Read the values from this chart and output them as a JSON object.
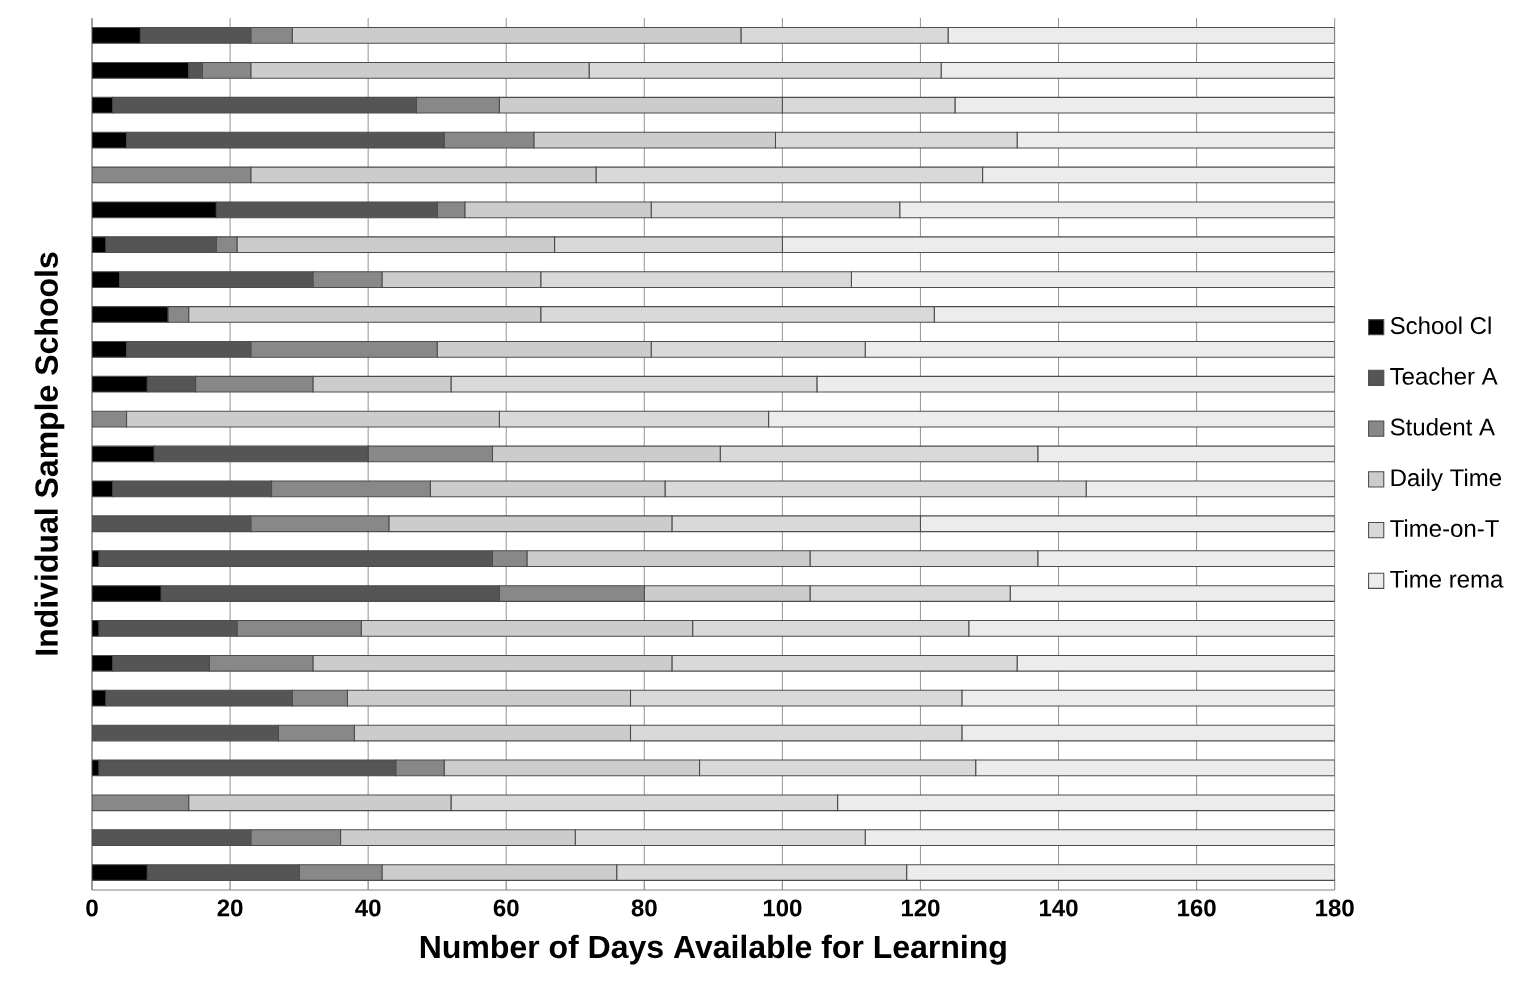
{
  "chart_data": {
    "type": "bar",
    "orientation": "horizontal",
    "stacked": true,
    "xlabel": "Number of Days Available for Learning",
    "ylabel": "Individual Sample Schools",
    "categories": [
      null,
      null,
      null,
      null,
      null,
      null,
      null,
      null,
      null,
      null,
      null,
      null,
      null,
      null,
      null,
      null,
      null,
      null,
      null,
      null,
      null,
      null,
      null,
      null,
      null
    ],
    "series": [
      {
        "name": "School Cl",
        "color": "#000000",
        "values": [
          7,
          14,
          3,
          5,
          0,
          18,
          2,
          4,
          11,
          5,
          8,
          0,
          9,
          3,
          0,
          1,
          10,
          1,
          3,
          2,
          0,
          1,
          0,
          0,
          8
        ]
      },
      {
        "name": "Teacher A",
        "color": "#555555",
        "values": [
          16,
          2,
          44,
          46,
          0,
          32,
          16,
          28,
          0,
          18,
          7,
          0,
          31,
          23,
          23,
          57,
          49,
          20,
          14,
          27,
          27,
          43,
          0,
          23,
          22
        ]
      },
      {
        "name": "Student A",
        "color": "#888888",
        "values": [
          6,
          7,
          12,
          13,
          23,
          4,
          3,
          10,
          3,
          27,
          17,
          5,
          18,
          23,
          20,
          5,
          21,
          18,
          15,
          8,
          11,
          7,
          14,
          13,
          12
        ]
      },
      {
        "name": "Daily Time",
        "color": "#cccccc",
        "values": [
          65,
          49,
          41,
          35,
          50,
          27,
          46,
          23,
          51,
          31,
          20,
          54,
          33,
          34,
          41,
          41,
          24,
          48,
          52,
          41,
          40,
          37,
          38,
          34,
          34
        ]
      },
      {
        "name": "Time-on-T",
        "color": "#d9d9d9",
        "values": [
          30,
          51,
          25,
          35,
          56,
          36,
          33,
          45,
          57,
          31,
          53,
          39,
          46,
          61,
          36,
          33,
          29,
          40,
          50,
          48,
          48,
          40,
          56,
          42,
          42
        ]
      },
      {
        "name": "Time rema",
        "color": "#ececec",
        "values": [
          56,
          57,
          55,
          46,
          51,
          63,
          80,
          70,
          58,
          68,
          75,
          82,
          43,
          36,
          60,
          43,
          47,
          53,
          46,
          54,
          54,
          52,
          72,
          68,
          62
        ]
      }
    ],
    "xlim": [
      0,
      180
    ],
    "xticks": [
      0,
      20,
      40,
      60,
      80,
      100,
      120,
      140,
      160,
      180
    ],
    "grid": "x",
    "legend": "right"
  }
}
